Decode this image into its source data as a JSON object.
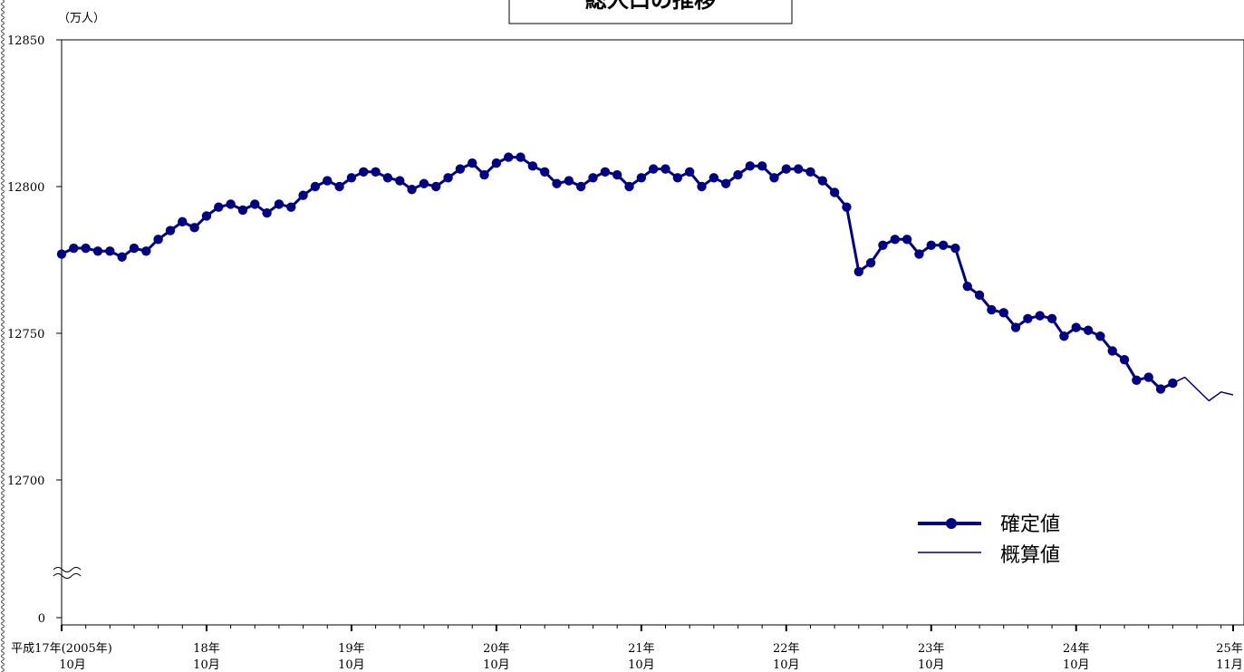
{
  "chart_data": {
    "type": "line",
    "title": "総人口の推移",
    "unit": "（万人）",
    "ylim": [
      12690,
      12850
    ],
    "axis_break": true,
    "y_ticks": [
      12850,
      12800,
      12750,
      12700,
      0
    ],
    "x_labels": [
      {
        "index": 0,
        "line1": "平成17年(2005年)",
        "line2": "10月"
      },
      {
        "index": 12,
        "line1": "18年",
        "line2": "10月"
      },
      {
        "index": 24,
        "line1": "19年",
        "line2": "10月"
      },
      {
        "index": 36,
        "line1": "20年",
        "line2": "10月"
      },
      {
        "index": 48,
        "line1": "21年",
        "line2": "10月"
      },
      {
        "index": 60,
        "line1": "22年",
        "line2": "10月"
      },
      {
        "index": 72,
        "line1": "23年",
        "line2": "10月"
      },
      {
        "index": 84,
        "line1": "24年",
        "line2": "10月"
      },
      {
        "index": 97,
        "line1": "25年",
        "line2": "11月"
      }
    ],
    "series": [
      {
        "name": "確定値",
        "color": "#000080",
        "marker": "circle",
        "start_index": 0,
        "values": [
          12777,
          12779,
          12779,
          12778,
          12778,
          12776,
          12779,
          12778,
          12782,
          12785,
          12788,
          12786,
          12790,
          12793,
          12794,
          12792,
          12794,
          12791,
          12794,
          12793,
          12797,
          12800,
          12802,
          12800,
          12803,
          12805,
          12805,
          12803,
          12802,
          12799,
          12801,
          12800,
          12803,
          12806,
          12808,
          12804,
          12808,
          12810,
          12810,
          12807,
          12805,
          12801,
          12802,
          12800,
          12803,
          12805,
          12804,
          12800,
          12803,
          12806,
          12806,
          12803,
          12805,
          12800,
          12803,
          12801,
          12804,
          12807,
          12807,
          12803,
          12806,
          12806,
          12805,
          12802,
          12798,
          12793,
          12771,
          12774,
          12780,
          12782,
          12782,
          12777,
          12780,
          12780,
          12779,
          12766,
          12763,
          12758,
          12757,
          12752,
          12755,
          12756,
          12755,
          12749,
          12752,
          12751,
          12749,
          12744,
          12741,
          12734,
          12735,
          12731,
          12733
        ]
      },
      {
        "name": "概算値",
        "color": "#000080",
        "marker": "none",
        "start_index": 92,
        "values": [
          12733,
          12735,
          12731,
          12727,
          12730,
          12729
        ]
      }
    ],
    "legend_position": "bottom-right",
    "grid": false
  }
}
